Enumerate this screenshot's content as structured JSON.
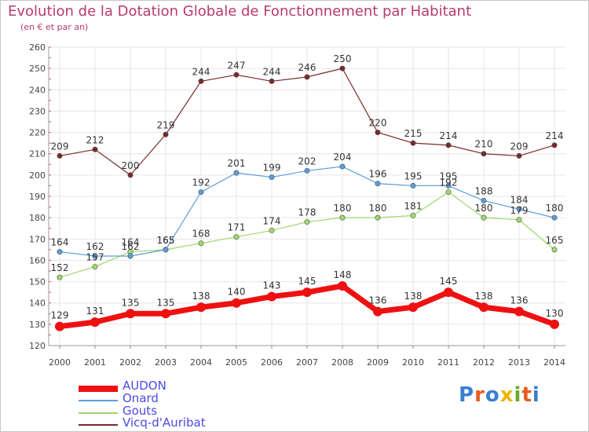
{
  "header": {
    "title": "Evolution de la Dotation Globale de Fonctionnement par Habitant",
    "subtitle": "(en € et par an)"
  },
  "logo": {
    "text": "Proxiti",
    "colors": [
      "#3a7fd0",
      "#e85a1e",
      "#3a7fd0",
      "#f0b400",
      "#6aa82a",
      "#e85a1e",
      "#3a7fd0"
    ]
  },
  "chart_data": {
    "type": "line",
    "x": [
      "2000",
      "2001",
      "2002",
      "2003",
      "2004",
      "2005",
      "2006",
      "2007",
      "2008",
      "2009",
      "2010",
      "2011",
      "2012",
      "2013",
      "2014"
    ],
    "ylim": [
      120,
      260
    ],
    "yticks": [
      120,
      130,
      140,
      150,
      160,
      170,
      180,
      190,
      200,
      210,
      220,
      230,
      240,
      250,
      260
    ],
    "grid": true,
    "legend_position": "bottom-left",
    "series": [
      {
        "name": "AUDON",
        "color": "#ee1111",
        "values": [
          129,
          131,
          135,
          135,
          138,
          140,
          143,
          145,
          148,
          136,
          138,
          145,
          138,
          136,
          130
        ]
      },
      {
        "name": "Onard",
        "color": "#5d9ed6",
        "values": [
          164,
          162,
          162,
          165,
          192,
          201,
          199,
          202,
          204,
          196,
          195,
          195,
          188,
          184,
          180
        ]
      },
      {
        "name": "Gouts",
        "color": "#9ed86a",
        "values": [
          152,
          157,
          164,
          165,
          168,
          171,
          174,
          178,
          180,
          180,
          181,
          192,
          180,
          179,
          165
        ]
      },
      {
        "name": "Vicq-d'Auribat",
        "color": "#7a2a2a",
        "values": [
          209,
          212,
          200,
          219,
          244,
          247,
          244,
          246,
          250,
          220,
          215,
          214,
          210,
          209,
          214
        ]
      }
    ]
  }
}
